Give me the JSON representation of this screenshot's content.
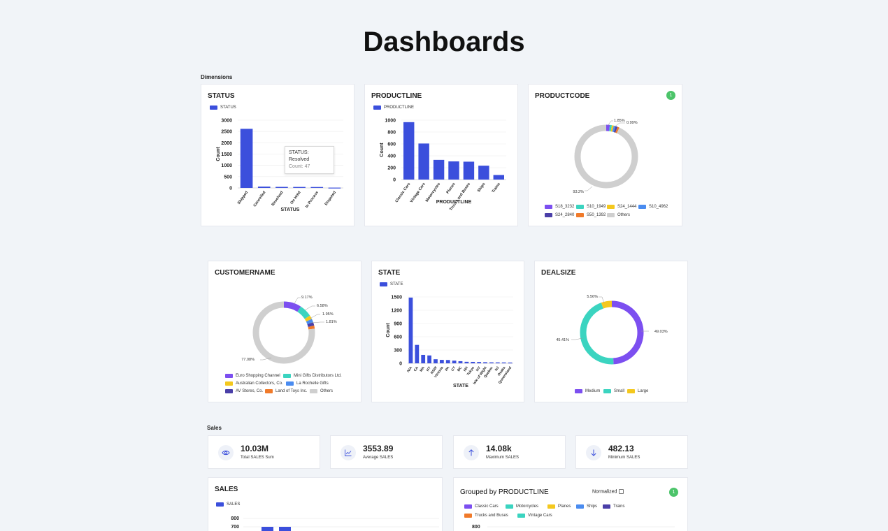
{
  "page_title": "Dashboards",
  "sections": {
    "dimensions": "Dimensions",
    "sales": "Sales"
  },
  "colors": {
    "bar": "#3b4fdc",
    "grey": "#cfcfcf",
    "purple": "#7c4ff0",
    "teal": "#3bd4c0",
    "yellow": "#f4c81e",
    "blue": "#4a8cf0",
    "indigo": "#4a3fa8",
    "orange": "#f07a2a",
    "green": "#4cc46a"
  },
  "status_card": {
    "title": "STATUS",
    "legend": "STATUS",
    "xlabel": "STATUS",
    "ylabel": "Count",
    "tooltip": {
      "title": "STATUS: Resolved",
      "value": "Count: 47"
    }
  },
  "productline_card": {
    "title": "PRODUCTLINE",
    "legend": "PRODUCTLINE",
    "xlabel": "PRODUCTLINE",
    "ylabel": "Count"
  },
  "productcode_card": {
    "title": "PRODUCTCODE",
    "badge": "1",
    "labels": [
      "1.85%",
      "0.99%",
      "93.2%"
    ],
    "legend": [
      {
        "name": "S18_3232",
        "color": "#7c4ff0"
      },
      {
        "name": "S10_1949",
        "color": "#3bd4c0"
      },
      {
        "name": "S24_1444",
        "color": "#f4c81e"
      },
      {
        "name": "S10_4962",
        "color": "#4a8cf0"
      },
      {
        "name": "S24_2840",
        "color": "#4a3fa8"
      },
      {
        "name": "S50_1392",
        "color": "#f07a2a"
      },
      {
        "name": "Others",
        "color": "#cfcfcf"
      }
    ]
  },
  "customername_card": {
    "title": "CUSTOMERNAME",
    "labels": [
      "9.17%",
      "6.58%",
      "1.95%",
      "1.81%",
      "77.08%"
    ],
    "legend": [
      {
        "name": "Euro Shopping Channel",
        "color": "#7c4ff0"
      },
      {
        "name": "Mini Gifts Distributors Ltd.",
        "color": "#3bd4c0"
      },
      {
        "name": "Australian Collectors, Co.",
        "color": "#f4c81e"
      },
      {
        "name": "La Rochelle Gifts",
        "color": "#4a8cf0"
      },
      {
        "name": "AV Stores, Co.",
        "color": "#4a3fa8"
      },
      {
        "name": "Land of Toys Inc.",
        "color": "#f07a2a"
      },
      {
        "name": "Others",
        "color": "#cfcfcf"
      }
    ]
  },
  "state_card": {
    "title": "STATE",
    "legend": "STATE",
    "xlabel": "STATE",
    "ylabel": "Count"
  },
  "dealsize_card": {
    "title": "DEALSIZE",
    "labels": [
      "5.56%",
      "49.03%",
      "45.41%"
    ],
    "legend": [
      {
        "name": "Medium",
        "color": "#7c4ff0"
      },
      {
        "name": "Small",
        "color": "#3bd4c0"
      },
      {
        "name": "Large",
        "color": "#f4c81e"
      }
    ]
  },
  "kpis": [
    {
      "value": "10.03M",
      "label": "Total SALES Sum",
      "icon": "eye-icon"
    },
    {
      "value": "3553.89",
      "label": "Average SALES",
      "icon": "trend-icon"
    },
    {
      "value": "14.08k",
      "label": "Maximum SALES",
      "icon": "arrow-up-icon"
    },
    {
      "value": "482.13",
      "label": "Minimum SALES",
      "icon": "arrow-down-icon"
    }
  ],
  "sales_card": {
    "title": "SALES",
    "legend": "SALES",
    "yticks": [
      "800",
      "700"
    ]
  },
  "grouped_card": {
    "title": "Grouped by PRODUCTLINE",
    "normalized_label": "Normalized",
    "badge": "1",
    "ytick": "800",
    "legend": [
      {
        "name": "Classic Cars",
        "color": "#7c4ff0"
      },
      {
        "name": "Motorcycles",
        "color": "#3bd4c0"
      },
      {
        "name": "Planes",
        "color": "#f4c81e"
      },
      {
        "name": "Ships",
        "color": "#4a8cf0"
      },
      {
        "name": "Trains",
        "color": "#4a3fa8"
      },
      {
        "name": "Trucks and Buses",
        "color": "#f07a2a"
      },
      {
        "name": "Vintage Cars",
        "color": "#3bd4c0"
      }
    ]
  },
  "chart_data": [
    {
      "type": "bar",
      "title": "STATUS",
      "xlabel": "STATUS",
      "ylabel": "Count",
      "categories": [
        "Shipped",
        "Cancelled",
        "Resolved",
        "On Hold",
        "In Process",
        "Disputed"
      ],
      "values": [
        2617,
        60,
        47,
        44,
        41,
        14
      ],
      "ylim": [
        0,
        3000
      ],
      "yticks": [
        0,
        500,
        1000,
        1500,
        2000,
        2500,
        3000
      ]
    },
    {
      "type": "bar",
      "title": "PRODUCTLINE",
      "xlabel": "PRODUCTLINE",
      "ylabel": "Count",
      "categories": [
        "Classic Cars",
        "Vintage Cars",
        "Motorcycles",
        "Planes",
        "Trucks and Buses",
        "Ships",
        "Trains"
      ],
      "values": [
        967,
        607,
        331,
        306,
        301,
        234,
        77
      ],
      "ylim": [
        0,
        1000
      ],
      "yticks": [
        0,
        200,
        400,
        600,
        800,
        1000
      ]
    },
    {
      "type": "pie",
      "title": "PRODUCTCODE",
      "categories": [
        "S18_3232",
        "S10_1949",
        "S24_1444",
        "S10_4962",
        "S24_2840",
        "S50_1392",
        "Others"
      ],
      "values": [
        1.85,
        0.99,
        0.99,
        0.99,
        0.99,
        0.99,
        93.2
      ]
    },
    {
      "type": "pie",
      "title": "CUSTOMERNAME",
      "categories": [
        "Euro Shopping Channel",
        "Mini Gifts Distributors Ltd.",
        "Australian Collectors, Co.",
        "La Rochelle Gifts",
        "AV Stores, Co.",
        "Land of Toys Inc.",
        "Others"
      ],
      "values": [
        9.17,
        6.58,
        1.95,
        1.81,
        1.81,
        1.6,
        77.08
      ]
    },
    {
      "type": "bar",
      "title": "STATE",
      "xlabel": "STATE",
      "ylabel": "Count",
      "categories": [
        "N/A",
        "CA",
        "MA",
        "NY",
        "NSW",
        "Victoria",
        "PA",
        "CT",
        "BC",
        "NH",
        "Tokyo",
        "NV",
        "Isle of Wight",
        "Quebec",
        "NJ",
        "Osaka",
        "Queensland"
      ],
      "values": [
        1486,
        416,
        190,
        178,
        92,
        78,
        75,
        61,
        48,
        34,
        32,
        29,
        25,
        22,
        21,
        20,
        18
      ],
      "ylim": [
        0,
        1500
      ],
      "yticks": [
        0,
        300,
        600,
        900,
        1200,
        1500
      ]
    },
    {
      "type": "pie",
      "title": "DEALSIZE",
      "categories": [
        "Medium",
        "Small",
        "Large"
      ],
      "values": [
        49.03,
        45.41,
        5.56
      ]
    }
  ]
}
